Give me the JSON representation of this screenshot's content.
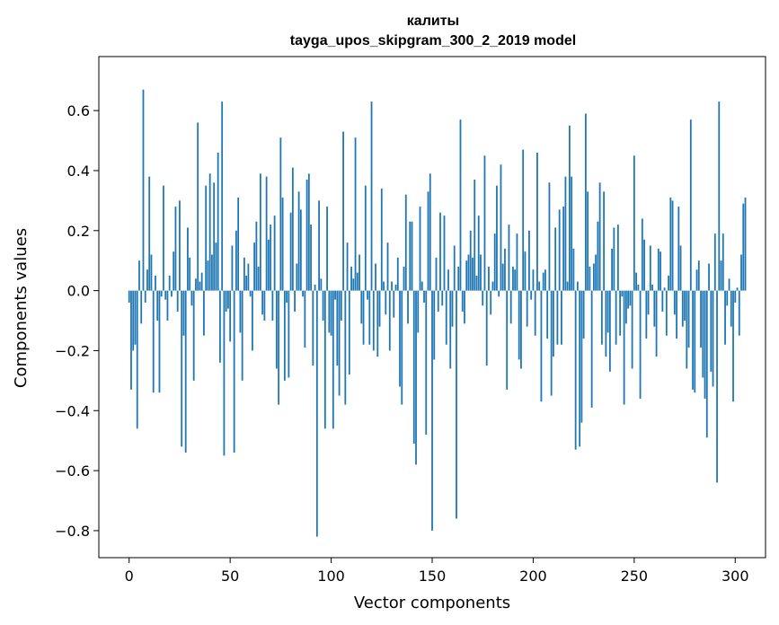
{
  "chart_data": {
    "type": "bar",
    "title": "калиты",
    "subtitle": "tayga_upos_skipgram_300_2_2019 model",
    "xlabel": "Vector components",
    "ylabel": "Components values",
    "xlim": [
      -15,
      315
    ],
    "ylim": [
      -0.89,
      0.78
    ],
    "xticks": [
      0,
      50,
      100,
      150,
      200,
      250,
      300
    ],
    "xtick_labels": [
      "0",
      "50",
      "100",
      "150",
      "200",
      "250",
      "300"
    ],
    "yticks": [
      -0.8,
      -0.6,
      -0.4,
      -0.2,
      0.0,
      0.2,
      0.4,
      0.6
    ],
    "ytick_labels": [
      "−0.8",
      "−0.6",
      "−0.4",
      "−0.2",
      "0.0",
      "0.2",
      "0.4",
      "0.6"
    ],
    "grid": false,
    "bar_color": "#1f77b4",
    "values": [
      -0.04,
      -0.33,
      -0.2,
      -0.18,
      -0.46,
      0.1,
      -0.11,
      0.67,
      -0.04,
      0.07,
      0.38,
      0.12,
      -0.34,
      0.05,
      -0.1,
      -0.34,
      -0.02,
      0.35,
      -0.03,
      -0.1,
      0.05,
      -0.02,
      0.13,
      0.28,
      -0.07,
      0.3,
      -0.52,
      -0.15,
      -0.54,
      0.21,
      0.11,
      -0.05,
      -0.3,
      0.04,
      0.56,
      0.03,
      0.06,
      -0.15,
      0.35,
      0.1,
      0.39,
      0.12,
      0.36,
      0.16,
      0.46,
      -0.24,
      0.63,
      -0.55,
      -0.07,
      -0.06,
      -0.17,
      0.15,
      -0.54,
      0.2,
      0.31,
      -0.14,
      -0.3,
      0.11,
      0.05,
      0.09,
      -0.02,
      -0.2,
      0.16,
      0.23,
      0.08,
      0.39,
      -0.08,
      -0.1,
      0.38,
      0.17,
      0.22,
      -0.1,
      0.25,
      -0.26,
      -0.38,
      0.51,
      0.31,
      -0.3,
      -0.04,
      -0.29,
      0.26,
      0.41,
      -0.07,
      0.09,
      0.33,
      0.27,
      -0.02,
      -0.19,
      0.37,
      0.39,
      0.22,
      -0.25,
      0.02,
      -0.82,
      0.3,
      0.04,
      -0.1,
      -0.46,
      0.28,
      -0.14,
      -0.15,
      -0.46,
      -0.03,
      -0.25,
      -0.35,
      -0.1,
      0.53,
      -0.38,
      0.16,
      -0.28,
      0.08,
      0.04,
      0.51,
      0.06,
      0.12,
      -0.11,
      -0.18,
      0.35,
      -0.03,
      -0.18,
      0.63,
      -0.2,
      0.09,
      -0.22,
      -0.12,
      0.34,
      0.03,
      -0.08,
      0.16,
      -0.2,
      0.03,
      -0.09,
      0.02,
      0.11,
      -0.32,
      -0.38,
      0.08,
      0.32,
      -0.11,
      0.23,
      0.23,
      -0.51,
      -0.58,
      -0.14,
      0.28,
      0.03,
      -0.04,
      -0.48,
      0.33,
      0.39,
      -0.8,
      -0.23,
      0.11,
      -0.07,
      0.26,
      -0.05,
      0.25,
      -0.18,
      0.07,
      -0.26,
      -0.12,
      0.15,
      -0.76,
      0.08,
      0.57,
      -0.07,
      -0.11,
      0.1,
      0.12,
      0.2,
      0.11,
      0.37,
      0.05,
      0.25,
      0.12,
      -0.05,
      0.45,
      -0.25,
      0.08,
      -0.08,
      0.03,
      0.19,
      0.35,
      -0.02,
      0.42,
      0.09,
      0.14,
      -0.33,
      0.22,
      -0.11,
      0.08,
      0.07,
      0.19,
      -0.23,
      -0.26,
      0.47,
      0.13,
      -0.12,
      0.2,
      -0.03,
      0.07,
      -0.15,
      0.46,
      0.03,
      -0.37,
      0.06,
      0.07,
      -0.16,
      0.36,
      -0.35,
      -0.22,
      0.21,
      -0.18,
      0.27,
      -0.18,
      0.28,
      0.38,
      0.03,
      0.55,
      0.38,
      0.14,
      -0.53,
      0.03,
      -0.52,
      -0.44,
      -0.16,
      0.59,
      0.33,
      0.08,
      -0.39,
      0.09,
      0.12,
      0.23,
      0.36,
      -0.18,
      0.33,
      -0.22,
      -0.14,
      -0.27,
      0.14,
      0.21,
      -0.18,
      0.22,
      -0.15,
      -0.02,
      -0.38,
      -0.11,
      -0.06,
      -0.05,
      -0.26,
      0.45,
      0.06,
      0.02,
      -0.36,
      0.24,
      0.17,
      -0.16,
      -0.08,
      0.15,
      0.02,
      -0.12,
      -0.22,
      0.14,
      0.13,
      -0.07,
      0.01,
      -0.15,
      0.05,
      0.31,
      0.3,
      -0.08,
      -0.16,
      0.28,
      0.15,
      -0.12,
      -0.1,
      -0.26,
      -0.19,
      0.57,
      -0.33,
      -0.34,
      0.07,
      0.1,
      -0.19,
      -0.29,
      -0.36,
      -0.49,
      0.09,
      -0.27,
      -0.32,
      0.19,
      -0.64,
      0.63,
      0.1,
      0.19,
      -0.18,
      -0.05,
      0.04,
      -0.12,
      -0.37,
      -0.04,
      0.01,
      -0.15,
      0.12,
      0.29,
      0.31
    ]
  }
}
